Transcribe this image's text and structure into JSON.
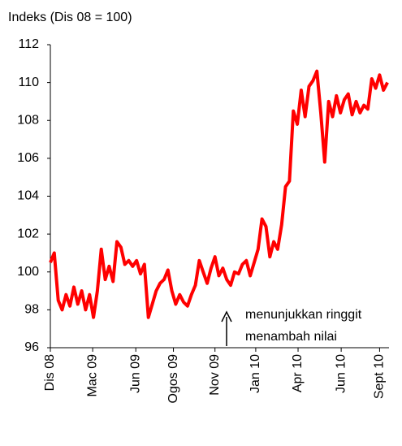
{
  "chart_data": {
    "type": "line",
    "ylabel": "Indeks (Dis 08 = 100)",
    "annotations": [
      "menunjukkan ringgit",
      "menambah nilai"
    ],
    "color": "#ff0000",
    "xlim": [
      0,
      21.6
    ],
    "xticks": [
      {
        "value": 0,
        "label": "Dis 08"
      },
      {
        "value": 2.7,
        "label": "Mac 09"
      },
      {
        "value": 5.45,
        "label": "Jun 09"
      },
      {
        "value": 7.85,
        "label": "Ogos 09"
      },
      {
        "value": 10.5,
        "label": "Nov 09"
      },
      {
        "value": 13.1,
        "label": "Jan 10"
      },
      {
        "value": 15.8,
        "label": "Apr 10"
      },
      {
        "value": 18.55,
        "label": "Jun 10"
      },
      {
        "value": 21,
        "label": "Sept 10"
      }
    ],
    "ylim": [
      96,
      112
    ],
    "yticks": [
      96,
      98,
      100,
      102,
      104,
      106,
      108,
      110,
      112
    ],
    "x": [
      0,
      0.25,
      0.5,
      0.75,
      1,
      1.25,
      1.5,
      1.75,
      2,
      2.25,
      2.5,
      2.75,
      3,
      3.25,
      3.5,
      3.75,
      4,
      4.25,
      4.5,
      4.75,
      5,
      5.25,
      5.5,
      5.75,
      6,
      6.25,
      6.5,
      6.75,
      7,
      7.25,
      7.5,
      7.75,
      8,
      8.25,
      8.5,
      8.75,
      9,
      9.25,
      9.5,
      9.75,
      10,
      10.25,
      10.5,
      10.75,
      11,
      11.25,
      11.5,
      11.75,
      12,
      12.25,
      12.5,
      12.75,
      13,
      13.25,
      13.5,
      13.75,
      14,
      14.25,
      14.5,
      14.75,
      15,
      15.25,
      15.5,
      15.75,
      16,
      16.25,
      16.5,
      16.75,
      17,
      17.25,
      17.5,
      17.75,
      18,
      18.25,
      18.5,
      18.75,
      19,
      19.25,
      19.5,
      19.75,
      20,
      20.25,
      20.5,
      20.75,
      21,
      21.25,
      21.5
    ],
    "values": [
      100.5,
      101,
      98.5,
      98,
      98.8,
      98.2,
      99.2,
      98.3,
      99,
      98,
      98.8,
      97.6,
      99,
      101.2,
      99.6,
      100.3,
      99.5,
      101.6,
      101.3,
      100.4,
      100.6,
      100.3,
      100.6,
      99.9,
      100.4,
      97.6,
      98.3,
      99,
      99.4,
      99.6,
      100.1,
      99,
      98.3,
      98.8,
      98.4,
      98.2,
      98.8,
      99.3,
      100.6,
      100,
      99.4,
      100.2,
      100.8,
      99.8,
      100.2,
      99.6,
      99.3,
      100,
      99.9,
      100.4,
      100.6,
      99.8,
      100.5,
      101.2,
      102.8,
      102.4,
      100.8,
      101.6,
      101.2,
      102.5,
      104.5,
      104.8,
      108.5,
      107.8,
      109.6,
      108.2,
      109.8,
      110.1,
      110.6,
      108.4,
      105.8,
      109,
      108.2,
      109.3,
      108.4,
      109.1,
      109.4,
      108.3,
      109,
      108.4,
      108.8,
      108.6,
      110.2,
      109.7,
      110.4,
      109.6,
      110
    ]
  }
}
